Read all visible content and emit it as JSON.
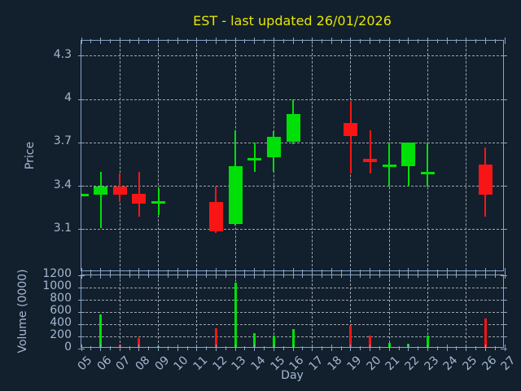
{
  "title": "EST - last updated 26/01/2026",
  "colors": {
    "background": "#121f2c",
    "spine": "#87a6c9",
    "tick_label": "#a4b8d2",
    "grid": "#9ea5ae",
    "title": "#e6e600",
    "up": "#00e008",
    "down": "#f91515"
  },
  "chart_data": {
    "type": "candlestick",
    "title": "EST - last updated 26/01/2026",
    "xlabel": "Day",
    "xlim": [
      5,
      27
    ],
    "xtick_labels": [
      "05",
      "06",
      "07",
      "08",
      "09",
      "10",
      "11",
      "12",
      "13",
      "14",
      "15",
      "16",
      "17",
      "18",
      "19",
      "20",
      "21",
      "22",
      "23",
      "24",
      "25",
      "26",
      "27"
    ],
    "grid_x_days": [
      7,
      9,
      11,
      13,
      15,
      17,
      19,
      21,
      23,
      25
    ],
    "legend": "none",
    "grid": "on",
    "price_panel": {
      "ylabel": "Price",
      "ylim": [
        2.807,
        4.407
      ],
      "yticks": [
        {
          "value": 3.1,
          "label": "3.1"
        },
        {
          "value": 3.4,
          "label": "3.4"
        },
        {
          "value": 3.7,
          "label": "3.7"
        },
        {
          "value": 4.0,
          "label": "4"
        },
        {
          "value": 4.3,
          "label": "4.3"
        }
      ]
    },
    "volume_panel": {
      "ylabel": "Volume (0000)",
      "ylim": [
        0,
        1200
      ],
      "yticks": [
        {
          "value": 0,
          "label": "0"
        },
        {
          "value": 200,
          "label": "200"
        },
        {
          "value": 400,
          "label": "400"
        },
        {
          "value": 600,
          "label": "600"
        },
        {
          "value": 800,
          "label": "800"
        },
        {
          "value": 1000,
          "label": "1000"
        },
        {
          "value": 1200,
          "label": "1200"
        }
      ]
    },
    "candles": [
      {
        "day": 5,
        "label": "05",
        "open": 3.34,
        "high": 3.34,
        "low": 3.34,
        "close": 3.34,
        "volume": 0
      },
      {
        "day": 6,
        "label": "06",
        "open": 3.34,
        "high": 3.5,
        "low": 3.11,
        "close": 3.4,
        "volume": 565
      },
      {
        "day": 7,
        "label": "07",
        "open": 3.4,
        "high": 3.49,
        "low": 3.29,
        "close": 3.34,
        "volume": 65
      },
      {
        "day": 8,
        "label": "08",
        "open": 3.35,
        "high": 3.5,
        "low": 3.19,
        "close": 3.28,
        "volume": 180
      },
      {
        "day": 9,
        "label": "09",
        "open": 3.29,
        "high": 3.39,
        "low": 3.2,
        "close": 3.29,
        "volume": 45
      },
      {
        "day": 12,
        "label": "12",
        "open": 3.29,
        "high": 3.4,
        "low": 3.08,
        "close": 3.09,
        "volume": 330
      },
      {
        "day": 13,
        "label": "13",
        "open": 3.14,
        "high": 3.79,
        "low": 3.13,
        "close": 3.54,
        "volume": 1080
      },
      {
        "day": 14,
        "label": "14",
        "open": 3.59,
        "high": 3.7,
        "low": 3.5,
        "close": 3.59,
        "volume": 260
      },
      {
        "day": 15,
        "label": "15",
        "open": 3.6,
        "high": 3.78,
        "low": 3.5,
        "close": 3.74,
        "volume": 210
      },
      {
        "day": 16,
        "label": "16",
        "open": 3.71,
        "high": 4.0,
        "low": 3.69,
        "close": 3.9,
        "volume": 325
      },
      {
        "day": 19,
        "label": "19",
        "open": 3.84,
        "high": 3.99,
        "low": 3.49,
        "close": 3.75,
        "volume": 380
      },
      {
        "day": 20,
        "label": "20",
        "open": 3.59,
        "high": 3.79,
        "low": 3.49,
        "close": 3.57,
        "volume": 220
      },
      {
        "day": 21,
        "label": "21",
        "open": 3.54,
        "high": 3.7,
        "low": 3.4,
        "close": 3.54,
        "volume": 100
      },
      {
        "day": 22,
        "label": "22",
        "open": 3.54,
        "high": 3.7,
        "low": 3.4,
        "close": 3.7,
        "volume": 80
      },
      {
        "day": 23,
        "label": "23",
        "open": 3.49,
        "high": 3.7,
        "low": 3.4,
        "close": 3.49,
        "volume": 220
      },
      {
        "day": 26,
        "label": "26",
        "open": 3.55,
        "high": 3.67,
        "low": 3.19,
        "close": 3.34,
        "volume": 490
      }
    ]
  }
}
